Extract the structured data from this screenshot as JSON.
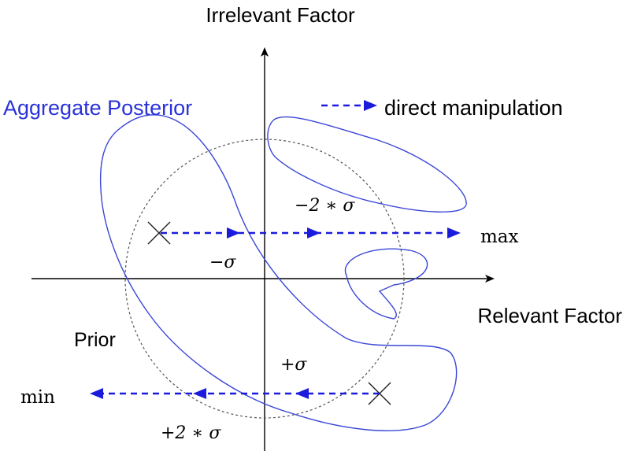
{
  "axes": {
    "x_label": "Relevant Factor",
    "y_label": "Irrelevant Factor"
  },
  "legend": {
    "label": "direct manipulation"
  },
  "labels": {
    "aggregate_posterior": "Aggregate Posterior",
    "prior": "Prior",
    "max": "max",
    "min": "min",
    "minus_sigma": "−σ",
    "minus_two_sigma": "−2 ∗ σ",
    "plus_sigma": "+σ",
    "plus_two_sigma": "+2 ∗ σ"
  },
  "colors": {
    "posterior": "#3b47d6",
    "arrow": "#1b1bdc",
    "axis": "#000000",
    "prior_circle": "#555555"
  }
}
